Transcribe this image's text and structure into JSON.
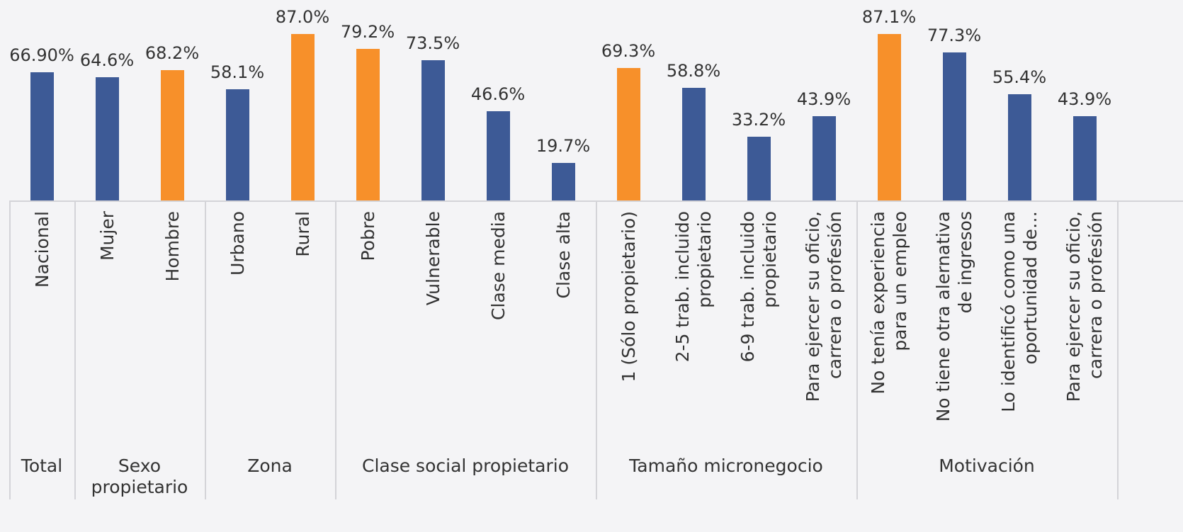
{
  "chart_data": {
    "type": "bar",
    "categories": [
      "Nacional",
      "Mujer",
      "Hombre",
      "Urbano",
      "Rural",
      "Pobre",
      "Vulnerable",
      "Clase media",
      "Clase alta",
      "1 (Sólo propietario)",
      "2-5 trab. incluido propietario",
      "6-9 trab. incluido propietario",
      "Para ejercer su oficio, carrera o profesión",
      "No tenía experiencia para un empleo",
      "No tiene otra alernativa de ingresos",
      "Lo identificó como una oportunidad de…",
      "Para ejercer su oficio, carrera o profesión"
    ],
    "values": [
      66.9,
      64.6,
      68.2,
      58.1,
      87.0,
      79.2,
      73.5,
      46.6,
      19.7,
      69.3,
      58.8,
      33.2,
      43.9,
      87.1,
      77.3,
      55.4,
      43.9
    ],
    "value_labels": [
      "66.90%",
      "64.6%",
      "68.2%",
      "58.1%",
      "87.0%",
      "79.2%",
      "73.5%",
      "46.6%",
      "19.7%",
      "69.3%",
      "58.8%",
      "33.2%",
      "43.9%",
      "87.1%",
      "77.3%",
      "55.4%",
      "43.9%"
    ],
    "colors": [
      "#3d5a96",
      "#3d5a96",
      "#f7902a",
      "#3d5a96",
      "#f7902a",
      "#f7902a",
      "#3d5a96",
      "#3d5a96",
      "#3d5a96",
      "#f7902a",
      "#3d5a96",
      "#3d5a96",
      "#3d5a96",
      "#f7902a",
      "#3d5a96",
      "#3d5a96",
      "#3d5a96"
    ],
    "groups": [
      {
        "label": "Total",
        "count": 1
      },
      {
        "label": "Sexo propietario",
        "count": 2
      },
      {
        "label": "Zona",
        "count": 2
      },
      {
        "label": "Clase social propietario",
        "count": 4
      },
      {
        "label": "Tamaño micronegocio",
        "count": 4
      },
      {
        "label": "Motivación",
        "count": 4
      }
    ],
    "ylim": [
      0,
      100
    ]
  }
}
